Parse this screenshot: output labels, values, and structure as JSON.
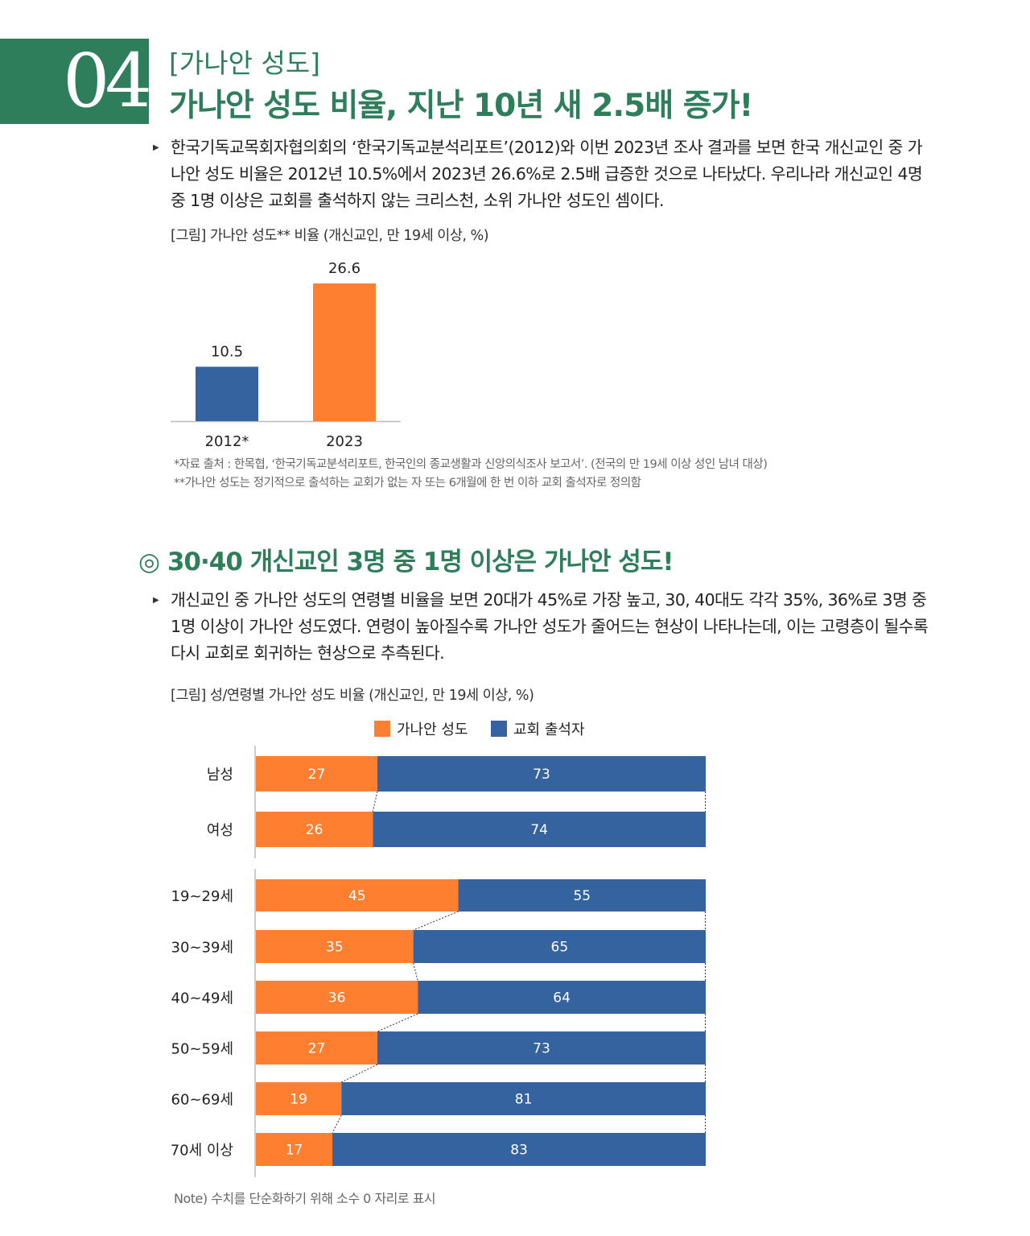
{
  "header": {
    "number": "04",
    "kicker": "[가나안 성도]",
    "title": "가나안 성도 비율, 지난 10년 새 2.5배 증가!"
  },
  "section1": {
    "paragraph": "한국기독교목회자협의회의 ‘한국기독교분석리포트’(2012)와 이번 2023년 조사 결과를 보면 한국 개신교인 중 가나안 성도 비율은 2012년 10.5%에서 2023년 26.6%로 2.5배 급증한 것으로 나타났다. 우리나라 개신교인 4명 중 1명 이상은 교회를 출석하지 않는 크리스천, 소위 가나안 성도인 셈이다.",
    "figure_caption": "[그림] 가나안 성도** 비율 (개신교인, 만 19세 이상, %)",
    "note1": "*자료 출처 : 한목협, ‘한국기독교분석리포트, 한국인의 종교생활과 신앙의식조사 보고서’. (전국의 만 19세 이상 성인 남녀 대상)",
    "note2": "**가나안 성도는 정기적으로 출석하는 교회가 없는 자 또는 6개월에 한 번 이하 교회 출석자로 정의함"
  },
  "section2": {
    "title": "◎ 30·40 개신교인 3명 중 1명 이상은 가나안 성도!",
    "paragraph": "개신교인 중 가나안 성도의 연령별 비율을 보면 20대가 45%로 가장 높고, 30, 40대도 각각 35%, 36%로 3명 중 1명 이상이 가나안 성도였다. 연령이 높아질수록 가나안 성도가 줄어드는 현상이 나타나는데, 이는 고령층이 될수록 다시 교회로 회귀하는 현상으로 추측된다.",
    "figure_caption": "[그림] 성/연령별 가나안 성도 비율 (개신교인, 만 19세 이상, %)",
    "note": "Note) 수치를 단순화하기 위해 소수 0 자리로 표시"
  },
  "colors": {
    "green": "#2e7d5b",
    "orange": "#fe7f2f",
    "blue": "#3563a0"
  },
  "chart_data": [
    {
      "type": "bar",
      "title": "가나안 성도** 비율 (개신교인, 만 19세 이상, %)",
      "categories": [
        "2012*",
        "2023"
      ],
      "values": [
        10.5,
        26.6
      ],
      "value_labels": [
        "10.5",
        "26.6"
      ],
      "colors": [
        "#3563a0",
        "#fe7f2f"
      ],
      "ylim": [
        0,
        30
      ]
    },
    {
      "type": "bar",
      "orientation": "horizontal-stacked",
      "title": "성/연령별 가나안 성도 비율 (개신교인, 만 19세 이상, %)",
      "legend": [
        "가나안 성도",
        "교회 출석자"
      ],
      "legend_position": "top",
      "categories": [
        "남성",
        "여성",
        "19~29세",
        "30~39세",
        "40~49세",
        "50~59세",
        "60~69세",
        "70세 이상"
      ],
      "series": [
        {
          "name": "가나안 성도",
          "values": [
            27,
            26,
            45,
            35,
            36,
            27,
            19,
            17
          ]
        },
        {
          "name": "교회 출석자",
          "values": [
            73,
            74,
            55,
            65,
            64,
            73,
            81,
            83
          ]
        }
      ],
      "xlim": [
        0,
        100
      ]
    }
  ]
}
